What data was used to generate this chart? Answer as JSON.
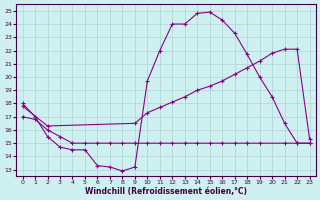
{
  "xlabel": "Windchill (Refroidissement éolien,°C)",
  "bg_color": "#cff0f0",
  "line_color": "#880088",
  "xlim": [
    -0.5,
    23.5
  ],
  "ylim": [
    12.5,
    25.5
  ],
  "yticks": [
    13,
    14,
    15,
    16,
    17,
    18,
    19,
    20,
    21,
    22,
    23,
    24,
    25
  ],
  "xticks": [
    0,
    1,
    2,
    3,
    4,
    5,
    6,
    7,
    8,
    9,
    10,
    11,
    12,
    13,
    14,
    15,
    16,
    17,
    18,
    19,
    20,
    21,
    22,
    23
  ],
  "line1_x": [
    0,
    1,
    2,
    3,
    4,
    5,
    6,
    7,
    8,
    9,
    10,
    11,
    12,
    13,
    14,
    15,
    16,
    17,
    18,
    19,
    20,
    21,
    22,
    23
  ],
  "line1_y": [
    18.0,
    17.0,
    15.5,
    14.7,
    14.5,
    14.5,
    13.3,
    13.2,
    12.9,
    13.2,
    19.7,
    22.0,
    24.0,
    24.0,
    24.8,
    24.9,
    24.3,
    23.3,
    21.7,
    20.0,
    18.5,
    16.5,
    15.0,
    15.0
  ],
  "line2_x": [
    0,
    2,
    9,
    10,
    11,
    12,
    13,
    14,
    15,
    16,
    17,
    18,
    19,
    20,
    21,
    22,
    23
  ],
  "line2_y": [
    17.8,
    16.3,
    16.5,
    17.3,
    17.7,
    18.1,
    18.5,
    19.0,
    19.3,
    19.7,
    20.2,
    20.7,
    21.2,
    21.8,
    22.1,
    22.1,
    15.3
  ],
  "line3_x": [
    0,
    1,
    2,
    3,
    4,
    5,
    6,
    7,
    8,
    9,
    10,
    11,
    12,
    13,
    14,
    15,
    16,
    17,
    18,
    19,
    21,
    22,
    23
  ],
  "line3_y": [
    17.0,
    16.8,
    16.0,
    15.5,
    15.0,
    15.0,
    15.0,
    15.0,
    15.0,
    15.0,
    15.0,
    15.0,
    15.0,
    15.0,
    15.0,
    15.0,
    15.0,
    15.0,
    15.0,
    15.0,
    15.0,
    15.0,
    15.0
  ]
}
